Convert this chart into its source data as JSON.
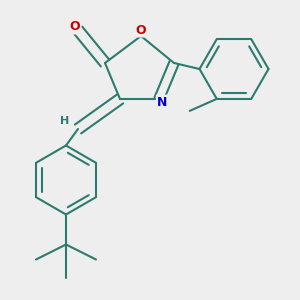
{
  "bg_color": "#eeeeee",
  "bond_color": "#2d7b6e",
  "O_color": "#cc0000",
  "N_color": "#0000cc",
  "line_width": 1.5,
  "figsize": [
    3.0,
    3.0
  ],
  "dpi": 100,
  "xlim": [
    0.0,
    1.0
  ],
  "ylim": [
    0.0,
    1.0
  ]
}
